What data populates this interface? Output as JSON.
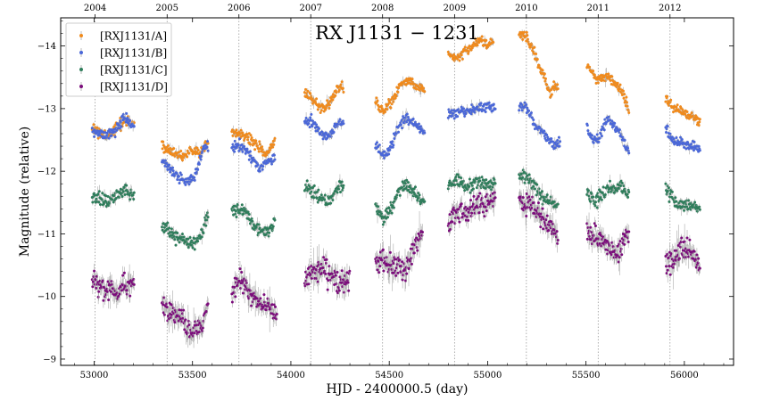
{
  "chart_data": {
    "type": "scatter",
    "title": "RX J1131 − 1231",
    "xlabel": "HJD - 2400000.5 (day)",
    "ylabel": "Magnitude (relative)",
    "xlim": [
      52830,
      56250
    ],
    "ylim": [
      -8.9,
      -14.45
    ],
    "y_inverted": true,
    "x_ticks": [
      53000,
      53500,
      54000,
      54500,
      55000,
      55500,
      56000
    ],
    "y_ticks": [
      -9,
      -10,
      -11,
      -12,
      -13,
      -14
    ],
    "x_ticks_labels": [
      "53000",
      "53500",
      "54000",
      "54500",
      "55000",
      "55500",
      "56000"
    ],
    "y_ticks_labels": [
      "−9",
      "−10",
      "−11",
      "−12",
      "−13",
      "−14"
    ],
    "top_axis": {
      "labels": [
        "2004",
        "2005",
        "2006",
        "2007",
        "2008",
        "2009",
        "2010",
        "2011",
        "2012"
      ],
      "positions": [
        53005,
        53371,
        53736,
        54101,
        54466,
        54832,
        55197,
        55562,
        55927
      ]
    },
    "year_gridlines": true,
    "legend_position": "top-left",
    "series": [
      {
        "name": "[RXJ1131/A]",
        "color": "#f08a1c",
        "scatter": 0.04,
        "err": 0.03,
        "knots": [
          [
            [
              52990,
              -12.7
            ],
            [
              53040,
              -12.58
            ],
            [
              53090,
              -12.6
            ],
            [
              53120,
              -12.72
            ],
            [
              53150,
              -12.82
            ],
            [
              53180,
              -12.8
            ],
            [
              53205,
              -12.72
            ]
          ],
          [
            [
              53345,
              -12.4
            ],
            [
              53400,
              -12.3
            ],
            [
              53450,
              -12.22
            ],
            [
              53500,
              -12.35
            ],
            [
              53540,
              -12.3
            ],
            [
              53580,
              -12.45
            ]
          ],
          [
            [
              53700,
              -12.65
            ],
            [
              53750,
              -12.6
            ],
            [
              53800,
              -12.5
            ],
            [
              53850,
              -12.35
            ],
            [
              53880,
              -12.3
            ],
            [
              53920,
              -12.5
            ]
          ],
          [
            [
              54070,
              -13.25
            ],
            [
              54100,
              -13.2
            ],
            [
              54140,
              -13.05
            ],
            [
              54170,
              -13.0
            ],
            [
              54200,
              -13.1
            ],
            [
              54230,
              -13.3
            ],
            [
              54270,
              -13.35
            ]
          ],
          [
            [
              54430,
              -13.1
            ],
            [
              54470,
              -12.95
            ],
            [
              54510,
              -13.1
            ],
            [
              54550,
              -13.35
            ],
            [
              54600,
              -13.45
            ],
            [
              54640,
              -13.35
            ],
            [
              54680,
              -13.3
            ]
          ],
          [
            [
              54800,
              -13.85
            ],
            [
              54840,
              -13.8
            ],
            [
              54880,
              -13.9
            ],
            [
              54920,
              -14.0
            ],
            [
              54960,
              -14.1
            ],
            [
              55000,
              -14.05
            ],
            [
              55030,
              -14.08
            ]
          ],
          [
            [
              55160,
              -14.2
            ],
            [
              55200,
              -14.15
            ],
            [
              55240,
              -13.85
            ],
            [
              55280,
              -13.55
            ],
            [
              55320,
              -13.25
            ],
            [
              55360,
              -13.4
            ]
          ],
          [
            [
              55505,
              -13.7
            ],
            [
              55530,
              -13.6
            ],
            [
              55560,
              -13.45
            ],
            [
              55600,
              -13.55
            ],
            [
              55630,
              -13.45
            ],
            [
              55680,
              -13.3
            ],
            [
              55720,
              -12.95
            ]
          ],
          [
            [
              55905,
              -13.15
            ],
            [
              55940,
              -13.05
            ],
            [
              55980,
              -12.95
            ],
            [
              56020,
              -12.9
            ],
            [
              56050,
              -12.85
            ],
            [
              56080,
              -12.75
            ]
          ]
        ]
      },
      {
        "name": "[RXJ1131/B]",
        "color": "#4a67d8",
        "scatter": 0.04,
        "err": 0.03,
        "knots": [
          [
            [
              52990,
              -12.65
            ],
            [
              53040,
              -12.58
            ],
            [
              53090,
              -12.62
            ],
            [
              53120,
              -12.7
            ],
            [
              53150,
              -12.85
            ],
            [
              53180,
              -12.78
            ],
            [
              53205,
              -12.7
            ]
          ],
          [
            [
              53345,
              -12.15
            ],
            [
              53390,
              -12.05
            ],
            [
              53430,
              -11.88
            ],
            [
              53470,
              -11.85
            ],
            [
              53510,
              -11.9
            ],
            [
              53550,
              -12.3
            ],
            [
              53580,
              -12.42
            ]
          ],
          [
            [
              53700,
              -12.35
            ],
            [
              53740,
              -12.45
            ],
            [
              53790,
              -12.25
            ],
            [
              53840,
              -12.05
            ],
            [
              53880,
              -12.15
            ],
            [
              53920,
              -12.2
            ]
          ],
          [
            [
              54070,
              -12.75
            ],
            [
              54110,
              -12.8
            ],
            [
              54150,
              -12.6
            ],
            [
              54190,
              -12.55
            ],
            [
              54230,
              -12.75
            ],
            [
              54270,
              -12.8
            ]
          ],
          [
            [
              54430,
              -12.45
            ],
            [
              54470,
              -12.25
            ],
            [
              54500,
              -12.35
            ],
            [
              54540,
              -12.65
            ],
            [
              54580,
              -12.85
            ],
            [
              54620,
              -12.8
            ],
            [
              54680,
              -12.6
            ]
          ],
          [
            [
              54800,
              -12.9
            ],
            [
              54850,
              -12.95
            ],
            [
              54900,
              -12.95
            ],
            [
              54950,
              -13.0
            ],
            [
              55000,
              -13.05
            ],
            [
              55040,
              -13.0
            ]
          ],
          [
            [
              55160,
              -13.05
            ],
            [
              55200,
              -13.0
            ],
            [
              55240,
              -12.75
            ],
            [
              55270,
              -12.65
            ],
            [
              55300,
              -12.55
            ],
            [
              55340,
              -12.4
            ],
            [
              55370,
              -12.45
            ]
          ],
          [
            [
              55505,
              -12.7
            ],
            [
              55540,
              -12.5
            ],
            [
              55570,
              -12.55
            ],
            [
              55610,
              -12.85
            ],
            [
              55640,
              -12.75
            ],
            [
              55680,
              -12.55
            ],
            [
              55720,
              -12.3
            ]
          ],
          [
            [
              55905,
              -12.7
            ],
            [
              55940,
              -12.5
            ],
            [
              55980,
              -12.45
            ],
            [
              56020,
              -12.4
            ],
            [
              56060,
              -12.38
            ],
            [
              56080,
              -12.35
            ]
          ]
        ]
      },
      {
        "name": "[RXJ1131/C]",
        "color": "#2e7d5b",
        "scatter": 0.05,
        "err": 0.04,
        "knots": [
          [
            [
              52990,
              -11.6
            ],
            [
              53030,
              -11.55
            ],
            [
              53080,
              -11.55
            ],
            [
              53130,
              -11.65
            ],
            [
              53160,
              -11.72
            ],
            [
              53185,
              -11.65
            ],
            [
              53205,
              -11.55
            ]
          ],
          [
            [
              53345,
              -11.1
            ],
            [
              53380,
              -11.05
            ],
            [
              53420,
              -10.95
            ],
            [
              53460,
              -10.9
            ],
            [
              53500,
              -10.85
            ],
            [
              53540,
              -10.95
            ],
            [
              53580,
              -11.3
            ]
          ],
          [
            [
              53700,
              -11.35
            ],
            [
              53740,
              -11.4
            ],
            [
              53780,
              -11.3
            ],
            [
              53820,
              -11.1
            ],
            [
              53860,
              -11.0
            ],
            [
              53900,
              -11.1
            ],
            [
              53920,
              -11.2
            ]
          ],
          [
            [
              54070,
              -11.75
            ],
            [
              54110,
              -11.7
            ],
            [
              54150,
              -11.55
            ],
            [
              54190,
              -11.5
            ],
            [
              54230,
              -11.7
            ],
            [
              54270,
              -11.8
            ]
          ],
          [
            [
              54430,
              -11.45
            ],
            [
              54470,
              -11.25
            ],
            [
              54510,
              -11.4
            ],
            [
              54550,
              -11.7
            ],
            [
              54590,
              -11.8
            ],
            [
              54630,
              -11.65
            ],
            [
              54680,
              -11.5
            ]
          ],
          [
            [
              54800,
              -11.8
            ],
            [
              54850,
              -11.85
            ],
            [
              54900,
              -11.75
            ],
            [
              54950,
              -11.85
            ],
            [
              55000,
              -11.8
            ],
            [
              55040,
              -11.75
            ]
          ],
          [
            [
              55160,
              -11.95
            ],
            [
              55200,
              -11.9
            ],
            [
              55240,
              -11.75
            ],
            [
              55280,
              -11.6
            ],
            [
              55320,
              -11.5
            ],
            [
              55360,
              -11.45
            ]
          ],
          [
            [
              55505,
              -11.65
            ],
            [
              55540,
              -11.5
            ],
            [
              55570,
              -11.6
            ],
            [
              55610,
              -11.75
            ],
            [
              55650,
              -11.7
            ],
            [
              55680,
              -11.75
            ],
            [
              55720,
              -11.6
            ]
          ],
          [
            [
              55905,
              -11.7
            ],
            [
              55940,
              -11.55
            ],
            [
              55980,
              -11.45
            ],
            [
              56020,
              -11.45
            ],
            [
              56060,
              -11.42
            ],
            [
              56080,
              -11.42
            ]
          ]
        ]
      },
      {
        "name": "[RXJ1131/D]",
        "color": "#7b0c7b",
        "scatter": 0.09,
        "err": 0.1,
        "knots": [
          [
            [
              52990,
              -10.25
            ],
            [
              53030,
              -10.15
            ],
            [
              53070,
              -10.1
            ],
            [
              53110,
              -10.05
            ],
            [
              53150,
              -10.15
            ],
            [
              53185,
              -10.2
            ],
            [
              53205,
              -10.1
            ]
          ],
          [
            [
              53345,
              -9.85
            ],
            [
              53380,
              -9.75
            ],
            [
              53420,
              -9.7
            ],
            [
              53460,
              -9.55
            ],
            [
              53500,
              -9.45
            ],
            [
              53540,
              -9.55
            ],
            [
              53580,
              -9.75
            ]
          ],
          [
            [
              53700,
              -10.05
            ],
            [
              53740,
              -10.25
            ],
            [
              53780,
              -10.1
            ],
            [
              53820,
              -9.95
            ],
            [
              53860,
              -9.85
            ],
            [
              53900,
              -9.8
            ],
            [
              53930,
              -9.7
            ]
          ],
          [
            [
              54070,
              -10.25
            ],
            [
              54110,
              -10.4
            ],
            [
              54150,
              -10.45
            ],
            [
              54190,
              -10.35
            ],
            [
              54230,
              -10.3
            ],
            [
              54270,
              -10.25
            ],
            [
              54300,
              -10.2
            ]
          ],
          [
            [
              54430,
              -10.55
            ],
            [
              54470,
              -10.6
            ],
            [
              54510,
              -10.5
            ],
            [
              54550,
              -10.4
            ],
            [
              54580,
              -10.35
            ],
            [
              54620,
              -10.7
            ],
            [
              54670,
              -10.95
            ]
          ],
          [
            [
              54800,
              -11.1
            ],
            [
              54840,
              -11.35
            ],
            [
              54880,
              -11.35
            ],
            [
              54920,
              -11.4
            ],
            [
              54960,
              -11.45
            ],
            [
              55000,
              -11.5
            ],
            [
              55040,
              -11.6
            ]
          ],
          [
            [
              55160,
              -11.55
            ],
            [
              55200,
              -11.5
            ],
            [
              55240,
              -11.4
            ],
            [
              55280,
              -11.25
            ],
            [
              55320,
              -11.1
            ],
            [
              55360,
              -10.85
            ]
          ],
          [
            [
              55505,
              -11.05
            ],
            [
              55540,
              -10.95
            ],
            [
              55570,
              -10.95
            ],
            [
              55610,
              -10.8
            ],
            [
              55650,
              -10.7
            ],
            [
              55690,
              -10.85
            ],
            [
              55720,
              -11.05
            ]
          ],
          [
            [
              55905,
              -10.6
            ],
            [
              55940,
              -10.5
            ],
            [
              55980,
              -10.75
            ],
            [
              56020,
              -10.78
            ],
            [
              56060,
              -10.55
            ],
            [
              56080,
              -10.5
            ]
          ]
        ]
      }
    ]
  }
}
